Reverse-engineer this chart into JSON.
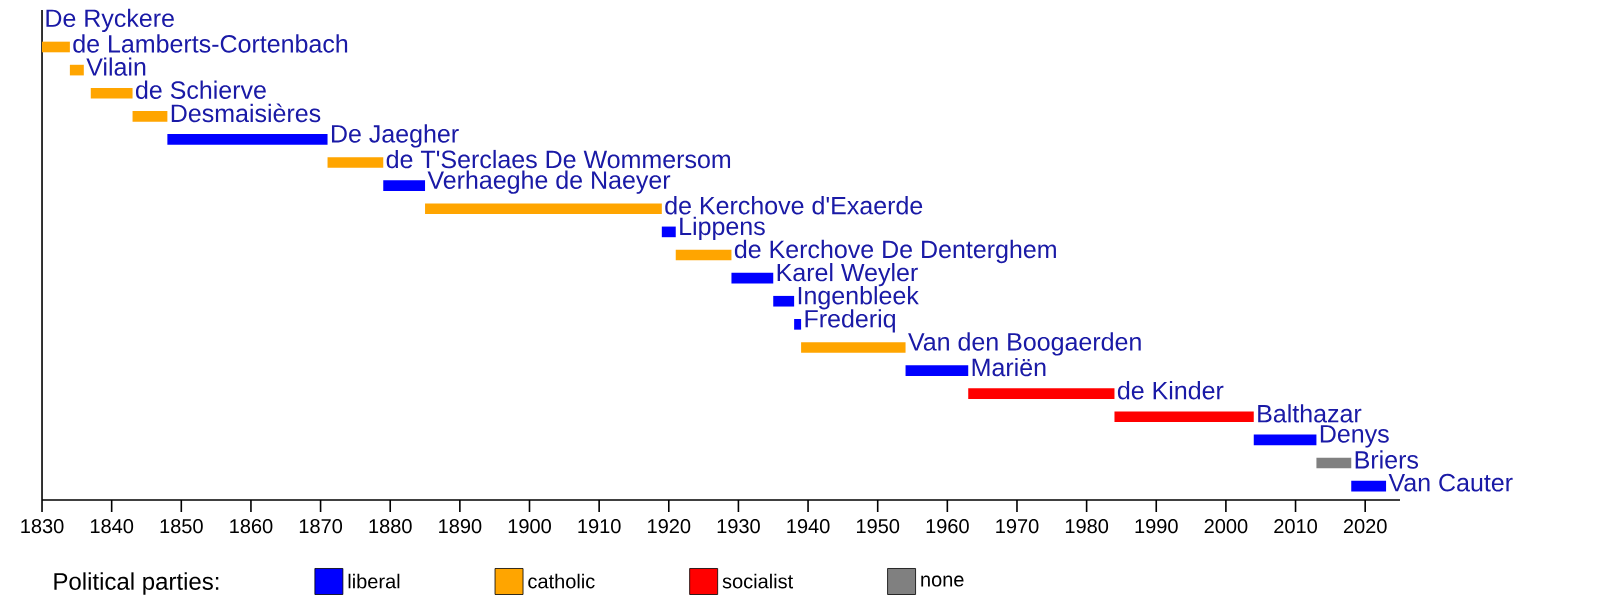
{
  "chart_data": {
    "type": "bar",
    "orientation": "horizontal",
    "legend_title": "Political parties:",
    "categories": [
      "De Ryckere",
      "de Lamberts-Cortenbach",
      "Vilain",
      "de Schierve",
      "Desmaisières",
      "De Jaegher",
      "de T'Serclaes De Wommersom",
      "Verhaeghe de Naeyer",
      "de Kerchove d'Exaerde",
      "Lippens",
      "de Kerchove De Denterghem",
      "Karel Weyler",
      "Ingenbleek",
      "Frederiq",
      "Van den Boogaerden",
      "Mariën",
      "de Kinder",
      "Balthazar",
      "Denys",
      "Briers",
      "Van Cauter"
    ],
    "series": [
      {
        "name": "liberal",
        "color": "#0000ff",
        "base": [
          null,
          null,
          null,
          null,
          null,
          1848,
          null,
          1879,
          null,
          1919,
          null,
          1929,
          1935,
          1938,
          null,
          1954,
          null,
          null,
          2004,
          null,
          2018
        ],
        "values": [
          null,
          null,
          null,
          null,
          null,
          23,
          null,
          6,
          null,
          2,
          null,
          6,
          3,
          1,
          null,
          9,
          null,
          null,
          9,
          null,
          5
        ]
      },
      {
        "name": "catholic",
        "color": "#ffa500",
        "base": [
          null,
          1830,
          1834,
          1837,
          1843,
          null,
          1871,
          null,
          1885,
          null,
          1921,
          null,
          null,
          null,
          1939,
          null,
          null,
          null,
          null,
          null,
          null
        ],
        "values": [
          null,
          4,
          2,
          6,
          5,
          null,
          8,
          null,
          34,
          null,
          8,
          null,
          null,
          null,
          15,
          null,
          null,
          null,
          null,
          null,
          null
        ]
      },
      {
        "name": "socialist",
        "color": "#ff0000",
        "base": [
          null,
          null,
          null,
          null,
          null,
          null,
          null,
          null,
          null,
          null,
          null,
          null,
          null,
          null,
          null,
          null,
          1963,
          1984,
          null,
          null,
          null
        ],
        "values": [
          null,
          null,
          null,
          null,
          null,
          null,
          null,
          null,
          null,
          null,
          null,
          null,
          null,
          null,
          null,
          null,
          21,
          20,
          null,
          null,
          null
        ]
      },
      {
        "name": "none",
        "color": "#808080",
        "base": [
          null,
          null,
          null,
          null,
          null,
          null,
          null,
          null,
          null,
          null,
          null,
          null,
          null,
          null,
          null,
          null,
          null,
          null,
          null,
          2013,
          null
        ],
        "values": [
          null,
          null,
          null,
          null,
          null,
          null,
          null,
          null,
          null,
          null,
          null,
          null,
          null,
          null,
          null,
          null,
          null,
          null,
          null,
          5,
          null
        ]
      }
    ],
    "xlim": [
      1830,
      2025
    ],
    "xticks": [
      1830,
      1840,
      1850,
      1860,
      1870,
      1880,
      1890,
      1900,
      1910,
      1920,
      1930,
      1940,
      1950,
      1960,
      1970,
      1980,
      1990,
      2000,
      2010,
      2020
    ],
    "grid": false,
    "legend": "bottom"
  }
}
